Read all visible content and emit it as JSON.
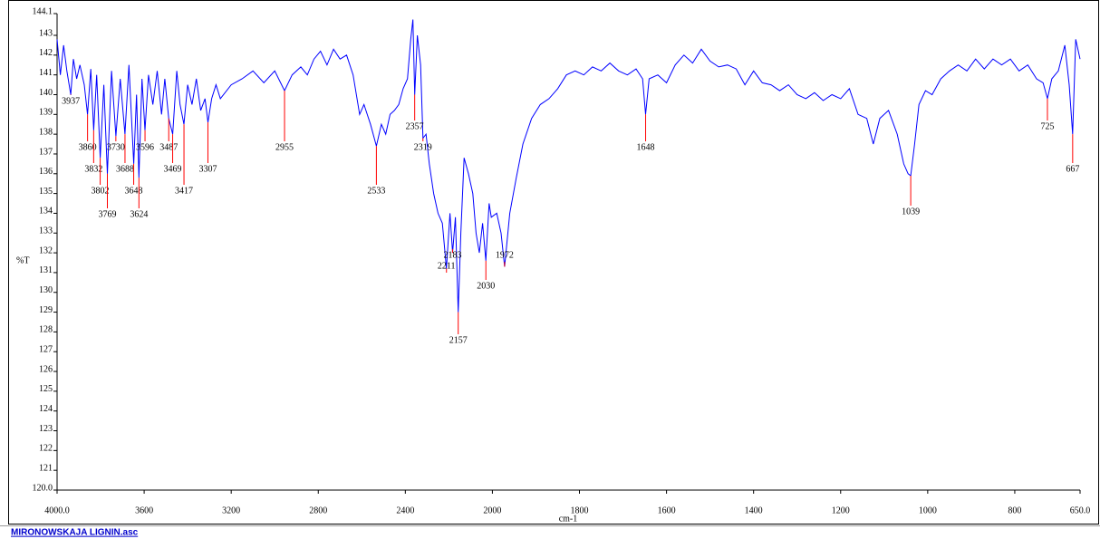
{
  "chart_data": {
    "type": "line",
    "y_label": "%T",
    "x_label": "cm-1",
    "file_link": "MIRONOWSKAJA LIGNIN.asc",
    "xlim": [
      4000,
      650
    ],
    "ylim": [
      120,
      144.1
    ],
    "x_scale_change": {
      "at": 2000,
      "factor": 2
    },
    "xticks": [
      {
        "value": 4000,
        "label": "4000.0"
      },
      3600,
      3200,
      2800,
      2400,
      2000,
      1800,
      1600,
      1400,
      1200,
      1000,
      800,
      {
        "value": 650,
        "label": "650.0"
      }
    ],
    "yticks": [
      {
        "value": 120,
        "label": "120.0"
      },
      121,
      122,
      123,
      124,
      125,
      126,
      127,
      128,
      129,
      130,
      131,
      132,
      133,
      134,
      135,
      136,
      137,
      138,
      139,
      140,
      141,
      142,
      143,
      144.1
    ],
    "series": [
      {
        "color": "#0000ff",
        "x": [
          4000,
          3985,
          3970,
          3955,
          3937,
          3925,
          3910,
          3895,
          3875,
          3860,
          3845,
          3832,
          3818,
          3802,
          3785,
          3769,
          3750,
          3730,
          3710,
          3688,
          3670,
          3648,
          3635,
          3624,
          3610,
          3596,
          3580,
          3560,
          3540,
          3520,
          3505,
          3487,
          3469,
          3450,
          3435,
          3417,
          3400,
          3380,
          3360,
          3340,
          3320,
          3307,
          3290,
          3270,
          3250,
          3200,
          3150,
          3100,
          3050,
          3000,
          2955,
          2920,
          2880,
          2850,
          2820,
          2790,
          2760,
          2730,
          2700,
          2670,
          2640,
          2610,
          2590,
          2560,
          2533,
          2510,
          2490,
          2470,
          2450,
          2430,
          2410,
          2390,
          2375,
          2365,
          2357,
          2345,
          2330,
          2319,
          2305,
          2290,
          2270,
          2250,
          2230,
          2211,
          2195,
          2183,
          2170,
          2157,
          2145,
          2130,
          2110,
          2090,
          2075,
          2060,
          2045,
          2030,
          2015,
          2005,
          1990,
          1980,
          1972,
          1960,
          1945,
          1930,
          1910,
          1890,
          1870,
          1850,
          1830,
          1810,
          1790,
          1770,
          1750,
          1730,
          1710,
          1690,
          1670,
          1655,
          1648,
          1640,
          1620,
          1600,
          1580,
          1560,
          1540,
          1520,
          1500,
          1480,
          1460,
          1440,
          1420,
          1400,
          1380,
          1360,
          1340,
          1320,
          1300,
          1280,
          1260,
          1240,
          1220,
          1200,
          1180,
          1160,
          1140,
          1125,
          1110,
          1090,
          1070,
          1055,
          1045,
          1039,
          1030,
          1020,
          1005,
          990,
          970,
          950,
          930,
          910,
          890,
          870,
          850,
          830,
          810,
          790,
          770,
          750,
          735,
          725,
          715,
          700,
          685,
          675,
          667,
          660,
          650
        ],
        "values": [
          142.8,
          141.0,
          142.5,
          141.2,
          140.0,
          141.8,
          140.8,
          141.5,
          140.5,
          139.0,
          141.3,
          138.2,
          141.0,
          136.8,
          140.5,
          136.0,
          141.2,
          137.9,
          140.8,
          138.0,
          141.5,
          136.5,
          140.0,
          135.8,
          140.8,
          138.2,
          141.0,
          139.5,
          141.2,
          139.0,
          140.8,
          138.8,
          138.0,
          141.2,
          139.5,
          138.5,
          140.5,
          139.5,
          140.8,
          139.2,
          139.8,
          138.6,
          139.8,
          140.5,
          139.8,
          140.5,
          140.8,
          141.2,
          140.6,
          141.2,
          140.2,
          141.0,
          141.4,
          141.0,
          141.8,
          142.2,
          141.5,
          142.3,
          141.8,
          142.0,
          141.0,
          139.0,
          139.5,
          138.5,
          137.4,
          138.5,
          138.0,
          139.0,
          139.2,
          139.5,
          140.3,
          140.8,
          142.8,
          143.8,
          140.0,
          143.0,
          141.5,
          137.8,
          138.0,
          136.5,
          135.0,
          134.0,
          133.5,
          131.2,
          134.0,
          132.0,
          133.8,
          129.0,
          133.0,
          136.8,
          136.0,
          135.0,
          133.0,
          132.0,
          133.5,
          131.6,
          134.5,
          133.8,
          134.0,
          133.0,
          131.3,
          134.0,
          135.8,
          137.5,
          138.8,
          139.5,
          139.8,
          140.3,
          141.0,
          141.2,
          141.0,
          141.4,
          141.2,
          141.6,
          141.2,
          141.0,
          141.3,
          140.8,
          139.0,
          140.8,
          141.0,
          140.6,
          141.5,
          142.0,
          141.6,
          142.3,
          141.7,
          141.4,
          141.5,
          141.3,
          140.5,
          141.2,
          140.6,
          140.5,
          140.2,
          140.5,
          140.0,
          139.8,
          140.1,
          139.7,
          140.0,
          139.8,
          140.3,
          139.0,
          138.8,
          137.5,
          138.8,
          139.2,
          138.0,
          136.5,
          136.0,
          135.9,
          137.5,
          139.5,
          140.2,
          140.0,
          140.8,
          141.2,
          141.5,
          141.2,
          141.8,
          141.3,
          141.8,
          141.5,
          141.8,
          141.2,
          141.5,
          140.8,
          140.6,
          139.8,
          140.8,
          141.2,
          142.5,
          140.5,
          138.0,
          142.8,
          141.8
        ]
      }
    ],
    "peaks": {
      "color": "#ff0000",
      "x": [
        3937,
        3860,
        3832,
        3802,
        3769,
        3730,
        3688,
        3648,
        3624,
        3596,
        3487,
        3469,
        3417,
        3307,
        2955,
        2533,
        2357,
        2319,
        2211,
        2183,
        2157,
        2030,
        1972,
        1648,
        1039,
        725,
        667
      ]
    }
  }
}
